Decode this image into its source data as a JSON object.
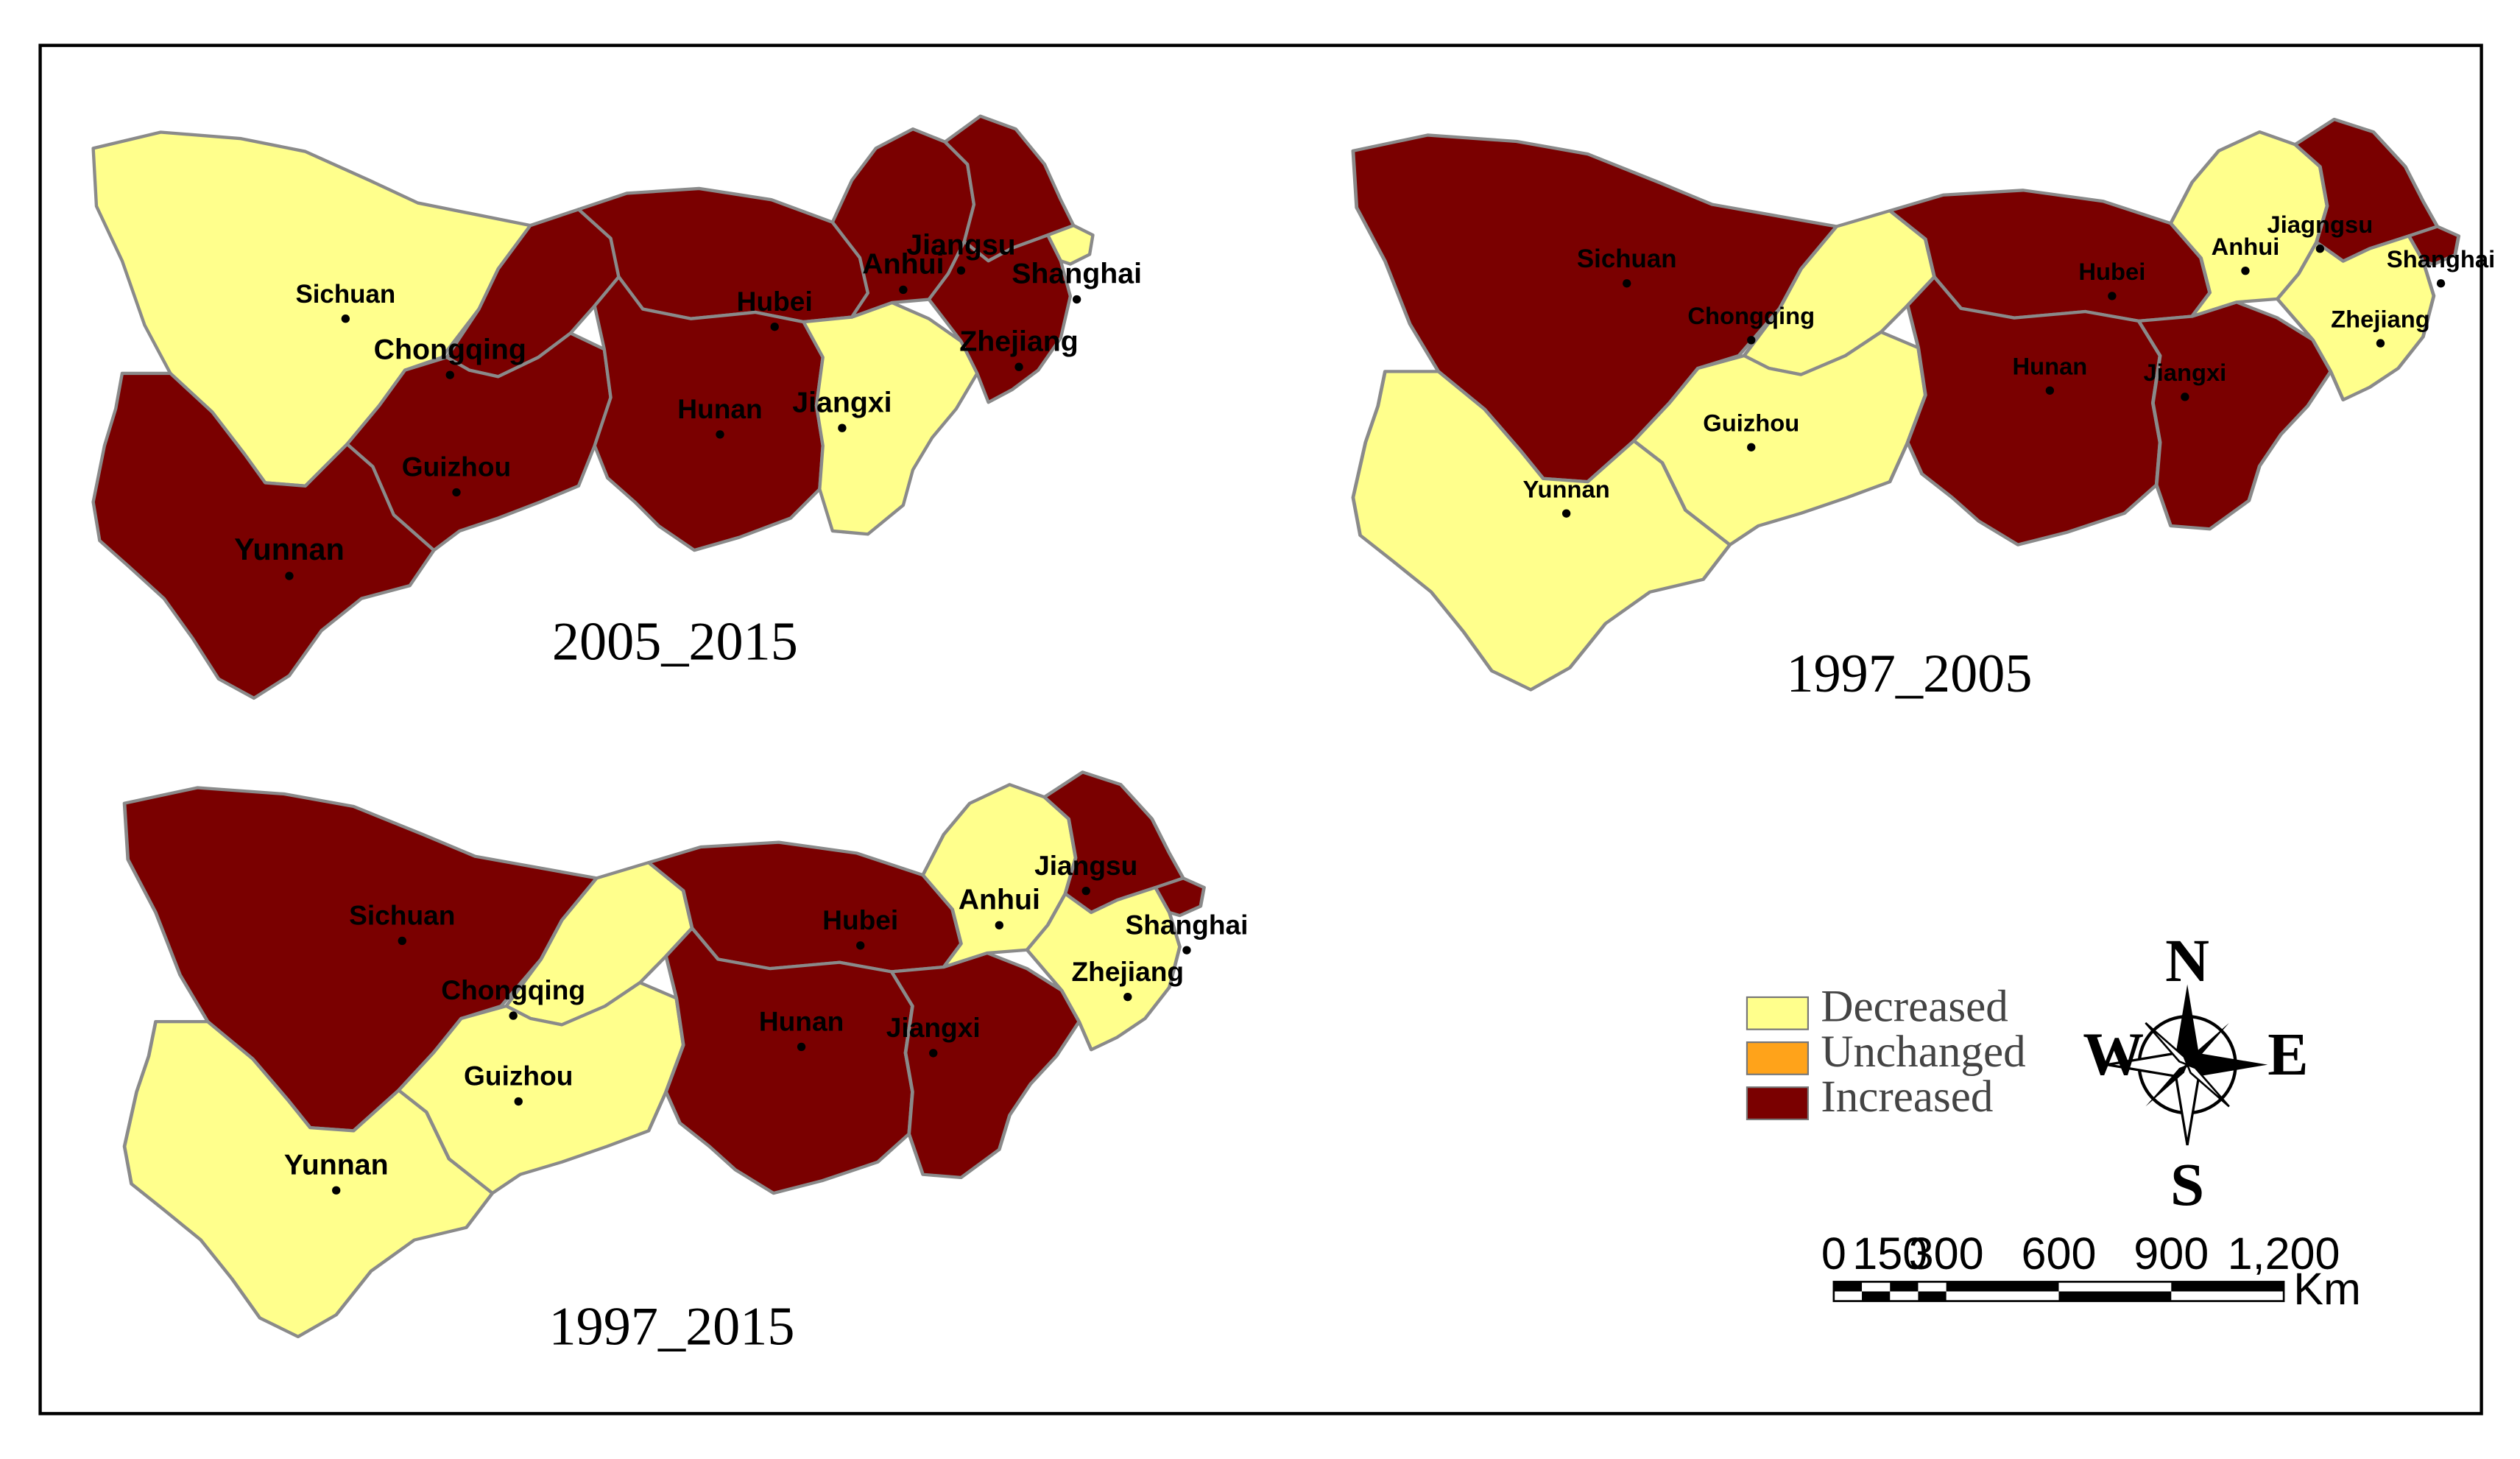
{
  "colors": {
    "decreased": "#ffff8c",
    "unchanged": "#ffa31a",
    "increased": "#7a0000",
    "border": "#8a8a8a",
    "frame": "#000000"
  },
  "panels": [
    {
      "title": "2005_2015",
      "status": {
        "Sichuan": "decreased",
        "Chongqing": "increased",
        "Yunnan": "increased",
        "Guizhou": "increased",
        "Hubei": "increased",
        "Hunan": "increased",
        "Jiangxi": "decreased",
        "Anhui": "increased",
        "Jiangsu": "increased",
        "Zhejiang": "increased",
        "Shanghai": "decreased"
      },
      "labels": {
        "Sichuan": "Sichuan",
        "Chongqing": "Chongqing",
        "Yunnan": "Yunnan",
        "Guizhou": "Guizhou",
        "Hubei": "Hubei",
        "Hunan": "Hunan",
        "Jiangxi": "Jiangxi",
        "Anhui": "Anhui",
        "Jiangsu": "Jiangsu",
        "Zhejiang": "Zhejiang",
        "Shanghai": "Shanghai"
      }
    },
    {
      "title": "1997_2005",
      "status": {
        "Sichuan": "increased",
        "Chongqing": "decreased",
        "Yunnan": "decreased",
        "Guizhou": "decreased",
        "Hubei": "increased",
        "Hunan": "increased",
        "Jiangxi": "increased",
        "Anhui": "decreased",
        "Jiangsu": "increased",
        "Zhejiang": "decreased",
        "Shanghai": "increased"
      },
      "labels": {
        "Sichuan": "Sichuan",
        "Chongqing": "Chongqing",
        "Yunnan": "Yunnan",
        "Guizhou": "Guizhou",
        "Hubei": "Hubei",
        "Hunan": "Hunan",
        "Jiangxi": "Jiangxi",
        "Anhui": "Anhui",
        "Jiangsu": "Jiagngsu",
        "Zhejiang": "Zhejiang",
        "Shanghai": "Shanghai"
      }
    },
    {
      "title": "1997_2015",
      "status": {
        "Sichuan": "increased",
        "Chongqing": "decreased",
        "Yunnan": "decreased",
        "Guizhou": "decreased",
        "Hubei": "increased",
        "Hunan": "increased",
        "Jiangxi": "increased",
        "Anhui": "decreased",
        "Jiangsu": "increased",
        "Zhejiang": "decreased",
        "Shanghai": "increased"
      },
      "labels": {
        "Sichuan": "Sichuan",
        "Chongqing": "Chongqing",
        "Yunnan": "Yunnan",
        "Guizhou": "Guizhou",
        "Hubei": "Hubei",
        "Hunan": "Hunan",
        "Jiangxi": "Jiangxi",
        "Anhui": "Anhui",
        "Jiangsu": "Jiangsu",
        "Zhejiang": "Zhejiang",
        "Shanghai": "Shanghai"
      }
    }
  ],
  "legend": {
    "items": [
      {
        "key": "decreased",
        "label": "Decreased"
      },
      {
        "key": "unchanged",
        "label": "Unchanged"
      },
      {
        "key": "increased",
        "label": "Increased"
      }
    ]
  },
  "compass": {
    "n": "N",
    "s": "S",
    "e": "E",
    "w": "W",
    "icon": "compass-rose-icon"
  },
  "scalebar": {
    "ticks": [
      "0",
      "150",
      "300",
      "600",
      "900",
      "1,200"
    ],
    "unit": "Km"
  }
}
